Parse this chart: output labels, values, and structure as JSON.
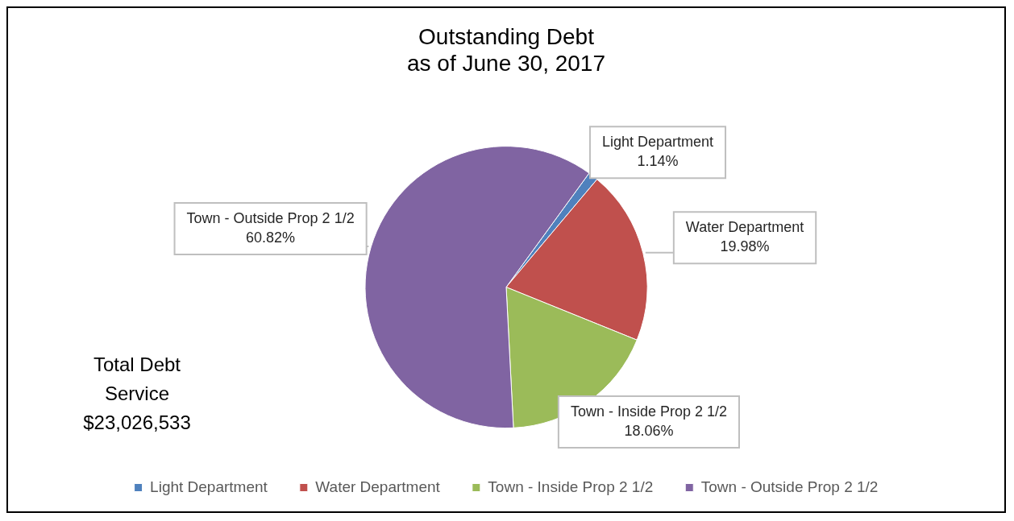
{
  "chart_data": {
    "type": "pie",
    "title": [
      "Outstanding Debt",
      "as of June 30, 2017"
    ],
    "categories": [
      "Light Department",
      "Water Department",
      "Town - Inside Prop 2 1/2",
      "Town - Outside Prop 2 1/2"
    ],
    "values": [
      1.14,
      19.98,
      18.06,
      60.82
    ],
    "colors": [
      "#4f81bd",
      "#c0504d",
      "#9bbb59",
      "#8064a2"
    ],
    "value_labels": [
      "1.14%",
      "19.98%",
      "18.06%",
      "60.82%"
    ],
    "legend": "bottom",
    "annotations": [
      "Total Debt\nService\n$23,026,533"
    ]
  }
}
